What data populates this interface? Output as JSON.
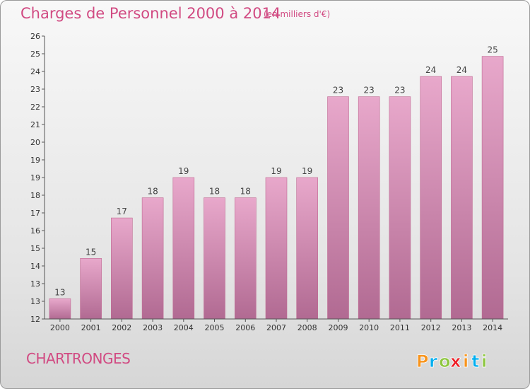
{
  "header": {
    "title": "Charges de Personnel 2000 à 2014",
    "unit_note": "(en milliers d'€)"
  },
  "footer": {
    "place": "CHARTRONGES",
    "brand": "Proxiti",
    "brand_colors": [
      "#f7941d",
      "#00aeef",
      "#8dc63f",
      "#ed1c24",
      "#f7941d",
      "#00aeef",
      "#8dc63f"
    ]
  },
  "chart_data": {
    "type": "bar",
    "categories": [
      "2000",
      "2001",
      "2002",
      "2003",
      "2004",
      "2005",
      "2006",
      "2007",
      "2008",
      "2009",
      "2010",
      "2011",
      "2012",
      "2013",
      "2014"
    ],
    "values": [
      13,
      15,
      17,
      18,
      19,
      18,
      18,
      19,
      19,
      23,
      23,
      23,
      24,
      24,
      25
    ],
    "data_labels": [
      "13",
      "15",
      "17",
      "18",
      "19",
      "18",
      "18",
      "19",
      "19",
      "23",
      "23",
      "23",
      "24",
      "24",
      "25"
    ],
    "y_ticks": [
      "12",
      "13",
      "13",
      "14",
      "15",
      "16",
      "17",
      "18",
      "19",
      "19",
      "20",
      "21",
      "22",
      "23",
      "24",
      "25",
      "26"
    ],
    "ylim": [
      12,
      26
    ],
    "bar_color": "#d9789f",
    "grid": false
  }
}
